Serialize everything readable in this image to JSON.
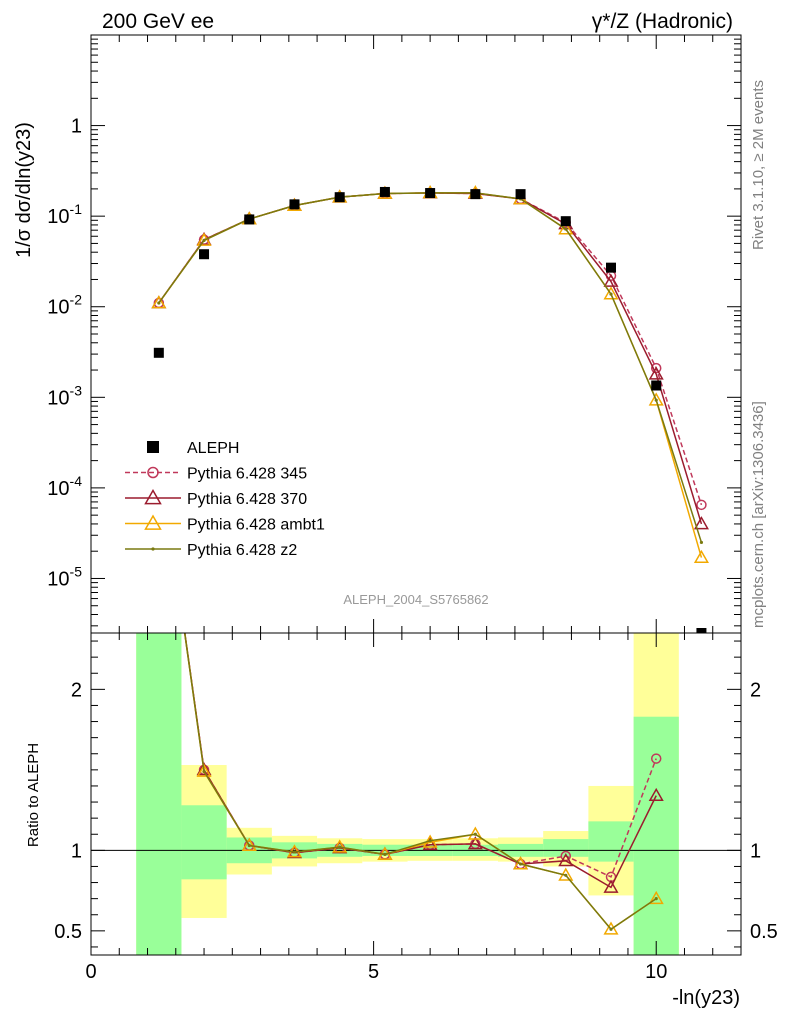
{
  "header": {
    "left": "200 GeV ee",
    "right": "γ*/Z (Hadronic)"
  },
  "side_text": {
    "top": "Rivet 3.1.10, ≥ 2M events",
    "bottom": "mcplots.cern.ch [arXiv:1306.3436]"
  },
  "analysis_label": "ALEPH_2004_S5765862",
  "chart_data": [
    {
      "type": "scatter",
      "panel": "main",
      "ylabel": "1/σ dσ/dln(y23)",
      "xlabel": "-ln(y23)",
      "xlim": [
        0,
        11.5
      ],
      "ylim": [
        2.5e-06,
        10
      ],
      "yscale": "log",
      "x_ticks": [
        "0",
        "5",
        "10"
      ],
      "y_ticks": [
        "1",
        "10^-1",
        "10^-2",
        "10^-3",
        "10^-4",
        "10^-5"
      ],
      "legend_position": "bottom-left",
      "data": {
        "name": "ALEPH",
        "color": "#000000",
        "x": [
          1.2,
          2.0,
          2.8,
          3.6,
          4.4,
          5.2,
          6.0,
          6.8,
          7.6,
          8.4,
          9.2,
          10.0,
          10.8
        ],
        "y": [
          0.0031,
          0.038,
          0.092,
          0.135,
          0.162,
          0.185,
          0.18,
          0.175,
          0.175,
          0.088,
          0.027,
          0.00135,
          2.5e-06
        ]
      },
      "series": [
        {
          "name": "Pythia 6.428 345",
          "color": "#c0385a",
          "marker": "open-circle",
          "dashed": true,
          "x": [
            1.2,
            2.0,
            2.8,
            3.6,
            4.4,
            5.2,
            6.0,
            6.8,
            7.6,
            8.4,
            9.2,
            10.0,
            10.8
          ],
          "y": [
            0.011,
            0.055,
            0.093,
            0.131,
            0.162,
            0.178,
            0.18,
            0.178,
            0.155,
            0.085,
            0.022,
            0.0021,
            6.5e-05
          ]
        },
        {
          "name": "Pythia 6.428 370",
          "color": "#9b1c2e",
          "marker": "open-triangle",
          "dashed": false,
          "x": [
            1.2,
            2.0,
            2.8,
            3.6,
            4.4,
            5.2,
            6.0,
            6.8,
            7.6,
            8.4,
            9.2,
            10.0,
            10.8
          ],
          "y": [
            0.011,
            0.055,
            0.093,
            0.131,
            0.162,
            0.178,
            0.18,
            0.178,
            0.155,
            0.082,
            0.019,
            0.0018,
            4e-05
          ]
        },
        {
          "name": "Pythia 6.428 ambt1",
          "color": "#f2a900",
          "marker": "open-triangle",
          "dashed": false,
          "x": [
            1.2,
            2.0,
            2.8,
            3.6,
            4.4,
            5.2,
            6.0,
            6.8,
            7.6,
            8.4,
            9.2,
            10.0,
            10.8
          ],
          "y": [
            0.011,
            0.054,
            0.093,
            0.131,
            0.162,
            0.178,
            0.181,
            0.181,
            0.155,
            0.072,
            0.0138,
            0.00093,
            1.7e-05
          ]
        },
        {
          "name": "Pythia 6.428 z2",
          "color": "#7a7a10",
          "marker": "dot",
          "dashed": false,
          "x": [
            1.2,
            2.0,
            2.8,
            3.6,
            4.4,
            5.2,
            6.0,
            6.8,
            7.6,
            8.4,
            9.2,
            10.0,
            10.8
          ],
          "y": [
            0.011,
            0.054,
            0.093,
            0.131,
            0.162,
            0.178,
            0.181,
            0.181,
            0.155,
            0.072,
            0.0138,
            0.00093,
            2.5e-05
          ]
        }
      ]
    },
    {
      "type": "line",
      "panel": "ratio",
      "ylabel": "Ratio to ALEPH",
      "xlabel": "-ln(y23)",
      "xlim": [
        0,
        11.5
      ],
      "ylim": [
        0.35,
        2.35
      ],
      "x_ticks": [
        "0",
        "5",
        "10"
      ],
      "y_ticks": [
        "0.5",
        "1",
        "2"
      ],
      "reference": 1.0,
      "bands": {
        "bin_edges": [
          0.8,
          1.6,
          2.4,
          3.2,
          4.0,
          4.8,
          5.6,
          6.4,
          7.2,
          8.0,
          8.8,
          9.6,
          10.4
        ],
        "green_lo": [
          0.35,
          0.82,
          0.92,
          0.95,
          0.96,
          0.965,
          0.965,
          0.965,
          0.96,
          0.96,
          0.93,
          0.35
        ],
        "green_hi": [
          2.35,
          1.28,
          1.08,
          1.05,
          1.04,
          1.035,
          1.035,
          1.035,
          1.04,
          1.07,
          1.18,
          1.83
        ],
        "yellow_lo": [
          0.35,
          0.58,
          0.85,
          0.9,
          0.92,
          0.93,
          0.935,
          0.935,
          0.93,
          0.9,
          0.72,
          0.35
        ],
        "yellow_hi": [
          2.35,
          1.53,
          1.14,
          1.09,
          1.075,
          1.07,
          1.07,
          1.075,
          1.08,
          1.12,
          1.4,
          2.35
        ]
      },
      "series": [
        {
          "name": "Pythia 6.428 345",
          "x": [
            1.2,
            2.0,
            2.8,
            3.6,
            4.4,
            5.2,
            6.0,
            6.8,
            7.6,
            8.4,
            9.2,
            10.0
          ],
          "y": [
            3.5,
            1.5,
            1.03,
            0.985,
            1.015,
            0.975,
            1.035,
            1.04,
            0.915,
            0.965,
            0.835,
            1.57
          ]
        },
        {
          "name": "Pythia 6.428 370",
          "x": [
            1.2,
            2.0,
            2.8,
            3.6,
            4.4,
            5.2,
            6.0,
            6.8,
            7.6,
            8.4,
            9.2,
            10.0
          ],
          "y": [
            3.5,
            1.5,
            1.03,
            0.985,
            1.015,
            0.975,
            1.035,
            1.04,
            0.915,
            0.935,
            0.77,
            1.34
          ]
        },
        {
          "name": "Pythia 6.428 ambt1",
          "x": [
            1.2,
            2.0,
            2.8,
            3.6,
            4.4,
            5.2,
            6.0,
            6.8,
            7.6,
            8.4,
            9.2,
            10.0
          ],
          "y": [
            3.5,
            1.49,
            1.03,
            0.99,
            1.02,
            0.975,
            1.05,
            1.1,
            0.915,
            0.845,
            0.51,
            0.7
          ]
        },
        {
          "name": "Pythia 6.428 z2",
          "x": [
            1.2,
            2.0,
            2.8,
            3.6,
            4.4,
            5.2,
            6.0,
            6.8,
            7.6,
            8.4,
            9.2,
            10.0
          ],
          "y": [
            3.5,
            1.49,
            1.03,
            0.99,
            1.02,
            0.975,
            1.06,
            1.1,
            0.915,
            0.845,
            0.51,
            0.7
          ]
        }
      ]
    }
  ]
}
